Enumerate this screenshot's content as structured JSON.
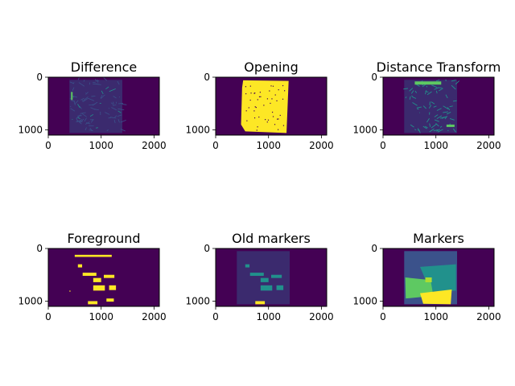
{
  "chart_data": [
    {
      "type": "heatmap",
      "title": "Difference",
      "x_ticks": [
        0,
        1000,
        2000
      ],
      "y_ticks": [
        0,
        1000
      ],
      "xlim": [
        0,
        2100
      ],
      "ylim": [
        1100,
        0
      ],
      "colormap": "viridis"
    },
    {
      "type": "heatmap",
      "title": "Opening",
      "x_ticks": [
        0,
        1000,
        2000
      ],
      "y_ticks": [
        0,
        1000
      ],
      "xlim": [
        0,
        2100
      ],
      "ylim": [
        1100,
        0
      ],
      "colormap": "viridis"
    },
    {
      "type": "heatmap",
      "title": "Distance Transform",
      "x_ticks": [
        0,
        1000,
        2000
      ],
      "y_ticks": [
        0,
        1000
      ],
      "xlim": [
        0,
        2100
      ],
      "ylim": [
        1100,
        0
      ],
      "colormap": "viridis"
    },
    {
      "type": "heatmap",
      "title": "Foreground",
      "x_ticks": [
        0,
        1000,
        2000
      ],
      "y_ticks": [
        0,
        1000
      ],
      "xlim": [
        0,
        2100
      ],
      "ylim": [
        1100,
        0
      ],
      "colormap": "viridis"
    },
    {
      "type": "heatmap",
      "title": "Old markers",
      "x_ticks": [
        0,
        1000,
        2000
      ],
      "y_ticks": [
        0,
        1000
      ],
      "xlim": [
        0,
        2100
      ],
      "ylim": [
        1100,
        0
      ],
      "colormap": "viridis"
    },
    {
      "type": "heatmap",
      "title": "Markers",
      "x_ticks": [
        0,
        1000,
        2000
      ],
      "y_ticks": [
        0,
        1000
      ],
      "xlim": [
        0,
        2100
      ],
      "ylim": [
        1100,
        0
      ],
      "colormap": "viridis"
    }
  ],
  "colors": {
    "background": "#440154",
    "inner": "#3b2a6e",
    "yellow": "#fde725",
    "green": "#5ec962",
    "teal": "#21918c",
    "blue": "#3b528b",
    "lightgreen": "#addc30"
  }
}
